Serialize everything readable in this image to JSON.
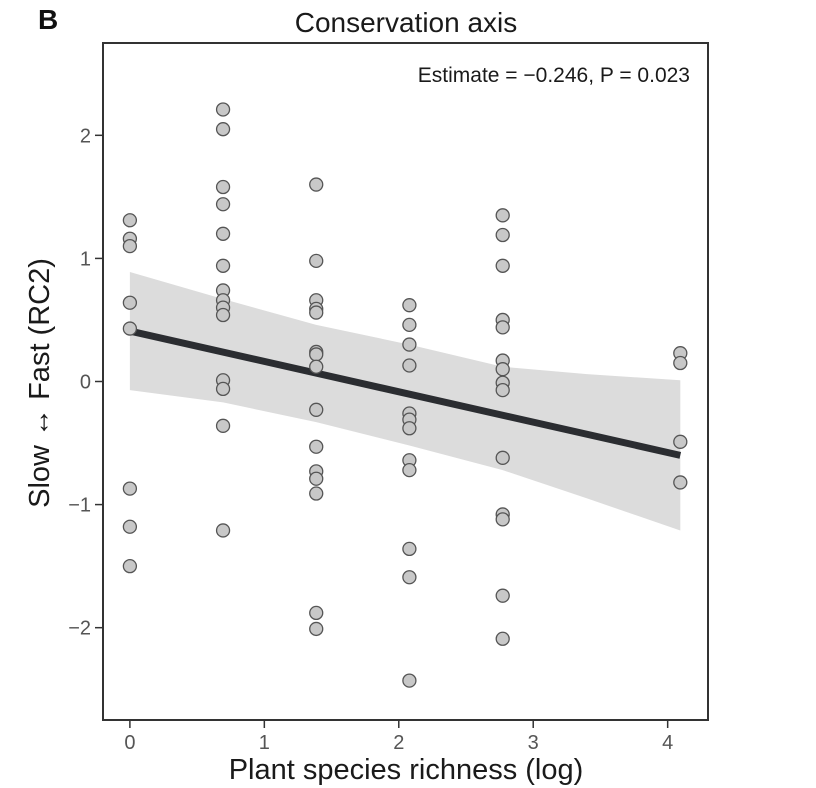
{
  "panel_letter": "B",
  "chart_data": {
    "type": "scatter",
    "title": "Conservation axis",
    "xlabel": "Plant species richness (log)",
    "ylabel": "Slow ↔ Fast (RC2)",
    "annotation": "Estimate = −0.246, P = 0.023",
    "xlim": [
      -0.2,
      4.3
    ],
    "ylim": [
      -2.75,
      2.75
    ],
    "x_ticks": [
      0,
      1,
      2,
      3,
      4
    ],
    "x_tick_labels": [
      "0",
      "1",
      "2",
      "3",
      "4"
    ],
    "y_ticks": [
      -2,
      -1,
      0,
      1,
      2
    ],
    "y_tick_labels": [
      "−2",
      "−1",
      "0",
      "1",
      "2"
    ],
    "grid": false,
    "colors": {
      "point_fill": "#c8c8c8",
      "point_stroke": "#555555",
      "fit_line": "#2b2d31",
      "ci_band": "#dcdcdc",
      "axis": "#333333"
    },
    "points": [
      {
        "x": 0,
        "y": 1.31
      },
      {
        "x": 0,
        "y": 1.16
      },
      {
        "x": 0,
        "y": 1.1
      },
      {
        "x": 0,
        "y": 0.64
      },
      {
        "x": 0,
        "y": 0.43
      },
      {
        "x": 0,
        "y": -0.87
      },
      {
        "x": 0,
        "y": -1.18
      },
      {
        "x": 0,
        "y": -1.5
      },
      {
        "x": 0.693,
        "y": 2.21
      },
      {
        "x": 0.693,
        "y": 2.05
      },
      {
        "x": 0.693,
        "y": 1.58
      },
      {
        "x": 0.693,
        "y": 1.44
      },
      {
        "x": 0.693,
        "y": 1.2
      },
      {
        "x": 0.693,
        "y": 0.94
      },
      {
        "x": 0.693,
        "y": 0.74
      },
      {
        "x": 0.693,
        "y": 0.66
      },
      {
        "x": 0.693,
        "y": 0.6
      },
      {
        "x": 0.693,
        "y": 0.54
      },
      {
        "x": 0.693,
        "y": 0.01
      },
      {
        "x": 0.693,
        "y": -0.06
      },
      {
        "x": 0.693,
        "y": -0.36
      },
      {
        "x": 0.693,
        "y": -1.21
      },
      {
        "x": 1.386,
        "y": 1.6
      },
      {
        "x": 1.386,
        "y": 0.98
      },
      {
        "x": 1.386,
        "y": 0.66
      },
      {
        "x": 1.386,
        "y": 0.59
      },
      {
        "x": 1.386,
        "y": 0.56
      },
      {
        "x": 1.386,
        "y": 0.24
      },
      {
        "x": 1.386,
        "y": 0.22
      },
      {
        "x": 1.386,
        "y": 0.12
      },
      {
        "x": 1.386,
        "y": -0.23
      },
      {
        "x": 1.386,
        "y": -0.53
      },
      {
        "x": 1.386,
        "y": -0.73
      },
      {
        "x": 1.386,
        "y": -0.79
      },
      {
        "x": 1.386,
        "y": -0.91
      },
      {
        "x": 1.386,
        "y": -1.88
      },
      {
        "x": 1.386,
        "y": -2.01
      },
      {
        "x": 2.079,
        "y": 0.62
      },
      {
        "x": 2.079,
        "y": 0.46
      },
      {
        "x": 2.079,
        "y": 0.3
      },
      {
        "x": 2.079,
        "y": 0.13
      },
      {
        "x": 2.079,
        "y": -0.26
      },
      {
        "x": 2.079,
        "y": -0.31
      },
      {
        "x": 2.079,
        "y": -0.38
      },
      {
        "x": 2.079,
        "y": -0.64
      },
      {
        "x": 2.079,
        "y": -0.72
      },
      {
        "x": 2.079,
        "y": -1.36
      },
      {
        "x": 2.079,
        "y": -1.59
      },
      {
        "x": 2.079,
        "y": -2.43
      },
      {
        "x": 2.773,
        "y": 1.35
      },
      {
        "x": 2.773,
        "y": 1.19
      },
      {
        "x": 2.773,
        "y": 0.94
      },
      {
        "x": 2.773,
        "y": 0.5
      },
      {
        "x": 2.773,
        "y": 0.44
      },
      {
        "x": 2.773,
        "y": 0.17
      },
      {
        "x": 2.773,
        "y": 0.1
      },
      {
        "x": 2.773,
        "y": -0.01
      },
      {
        "x": 2.773,
        "y": -0.07
      },
      {
        "x": 2.773,
        "y": -0.62
      },
      {
        "x": 2.773,
        "y": -1.08
      },
      {
        "x": 2.773,
        "y": -1.12
      },
      {
        "x": 2.773,
        "y": -1.74
      },
      {
        "x": 2.773,
        "y": -2.09
      },
      {
        "x": 4.094,
        "y": 0.23
      },
      {
        "x": 4.094,
        "y": 0.15
      },
      {
        "x": 4.094,
        "y": -0.49
      },
      {
        "x": 4.094,
        "y": -0.82
      }
    ],
    "fit_line": {
      "x": [
        0,
        4.094
      ],
      "y": [
        0.41,
        -0.6
      ]
    },
    "ci_band": {
      "x": [
        0,
        0.693,
        1.386,
        2.079,
        2.773,
        3.4,
        4.094
      ],
      "upper": [
        0.89,
        0.67,
        0.46,
        0.3,
        0.12,
        0.06,
        0.01
      ],
      "lower": [
        -0.07,
        -0.17,
        -0.33,
        -0.52,
        -0.72,
        -0.95,
        -1.21
      ]
    }
  }
}
